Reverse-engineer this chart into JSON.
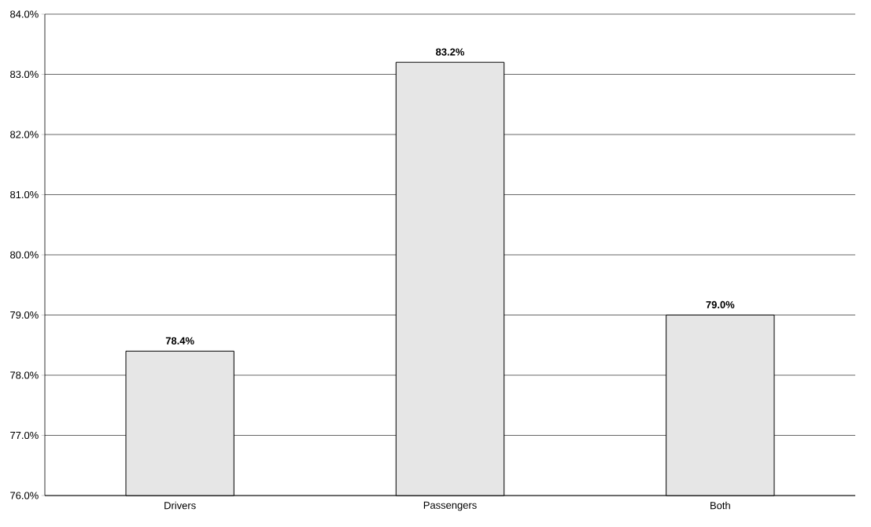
{
  "chart_data": {
    "type": "bar",
    "categories": [
      "Drivers",
      "Passengers",
      "Both"
    ],
    "values": [
      78.4,
      83.2,
      79.0
    ],
    "value_labels": [
      "78.4%",
      "83.2%",
      "79.0%"
    ],
    "color": "#e6e6e6",
    "ylim": [
      76,
      84
    ],
    "yticks": [
      {
        "value": 76,
        "label": "76.0%"
      },
      {
        "value": 77,
        "label": "77.0%"
      },
      {
        "value": 78,
        "label": "78.0%"
      },
      {
        "value": 79,
        "label": "79.0%"
      },
      {
        "value": 80,
        "label": "80.0%"
      },
      {
        "value": 81,
        "label": "81.0%"
      },
      {
        "value": 82,
        "label": "82.0%"
      },
      {
        "value": 83,
        "label": "83.0%"
      },
      {
        "value": 84,
        "label": "84.0%"
      }
    ],
    "grid": "y"
  }
}
